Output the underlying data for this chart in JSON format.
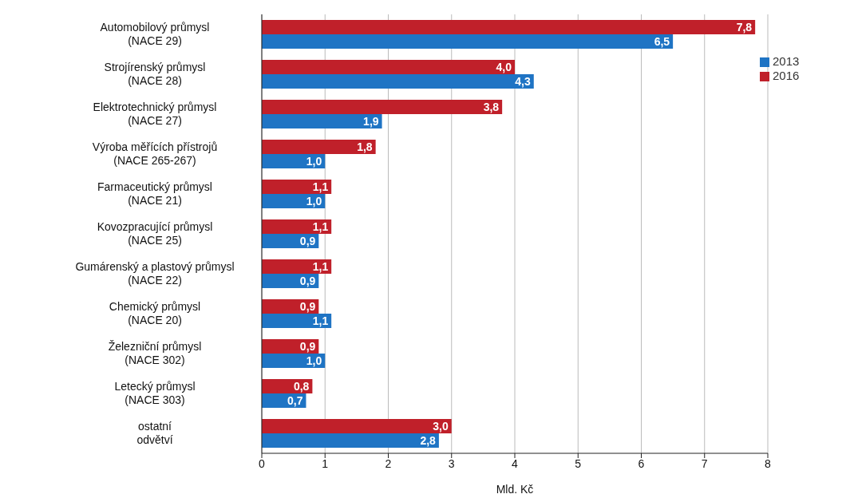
{
  "chart_data": {
    "type": "bar",
    "orientation": "horizontal",
    "xlabel": "Mld. Kč",
    "categories": [
      "Automobilový průmysl\n(NACE 29)",
      "Strojírenský průmysl\n(NACE 28)",
      "Elektrotechnický průmysl\n(NACE 27)",
      "Výroba měřících přístrojů\n(NACE 265-267)",
      "Farmaceutický průmysl\n(NACE 21)",
      "Kovozpracující průmysl\n(NACE 25)",
      "Gumárenský a plastový průmysl\n(NACE 22)",
      "Chemický průmysl\n(NACE 20)",
      "Železniční průmysl\n(NACE 302)",
      "Letecký průmysl\n(NACE 303)",
      "ostatní\nodvětví"
    ],
    "series": [
      {
        "name": "2016",
        "color": "#c0202a",
        "values": [
          7.8,
          4.0,
          3.8,
          1.8,
          1.1,
          1.1,
          1.1,
          0.9,
          0.9,
          0.8,
          3.0
        ],
        "value_labels": [
          "7,8",
          "4,0",
          "3,8",
          "1,8",
          "1,1",
          "1,1",
          "1,1",
          "0,9",
          "0,9",
          "0,8",
          "3,0"
        ]
      },
      {
        "name": "2013",
        "color": "#1f74c4",
        "values": [
          6.5,
          4.3,
          1.9,
          1.0,
          1.0,
          0.9,
          0.9,
          1.1,
          1.0,
          0.7,
          2.8
        ],
        "value_labels": [
          "6,5",
          "4,3",
          "1,9",
          "1,0",
          "1,0",
          "0,9",
          "0,9",
          "1,1",
          "1,0",
          "0,7",
          "2,8"
        ]
      }
    ],
    "xlim": [
      0,
      8
    ],
    "xticks": [
      0,
      1,
      2,
      3,
      4,
      5,
      6,
      7,
      8
    ],
    "grid": "x",
    "legend": "top right"
  }
}
